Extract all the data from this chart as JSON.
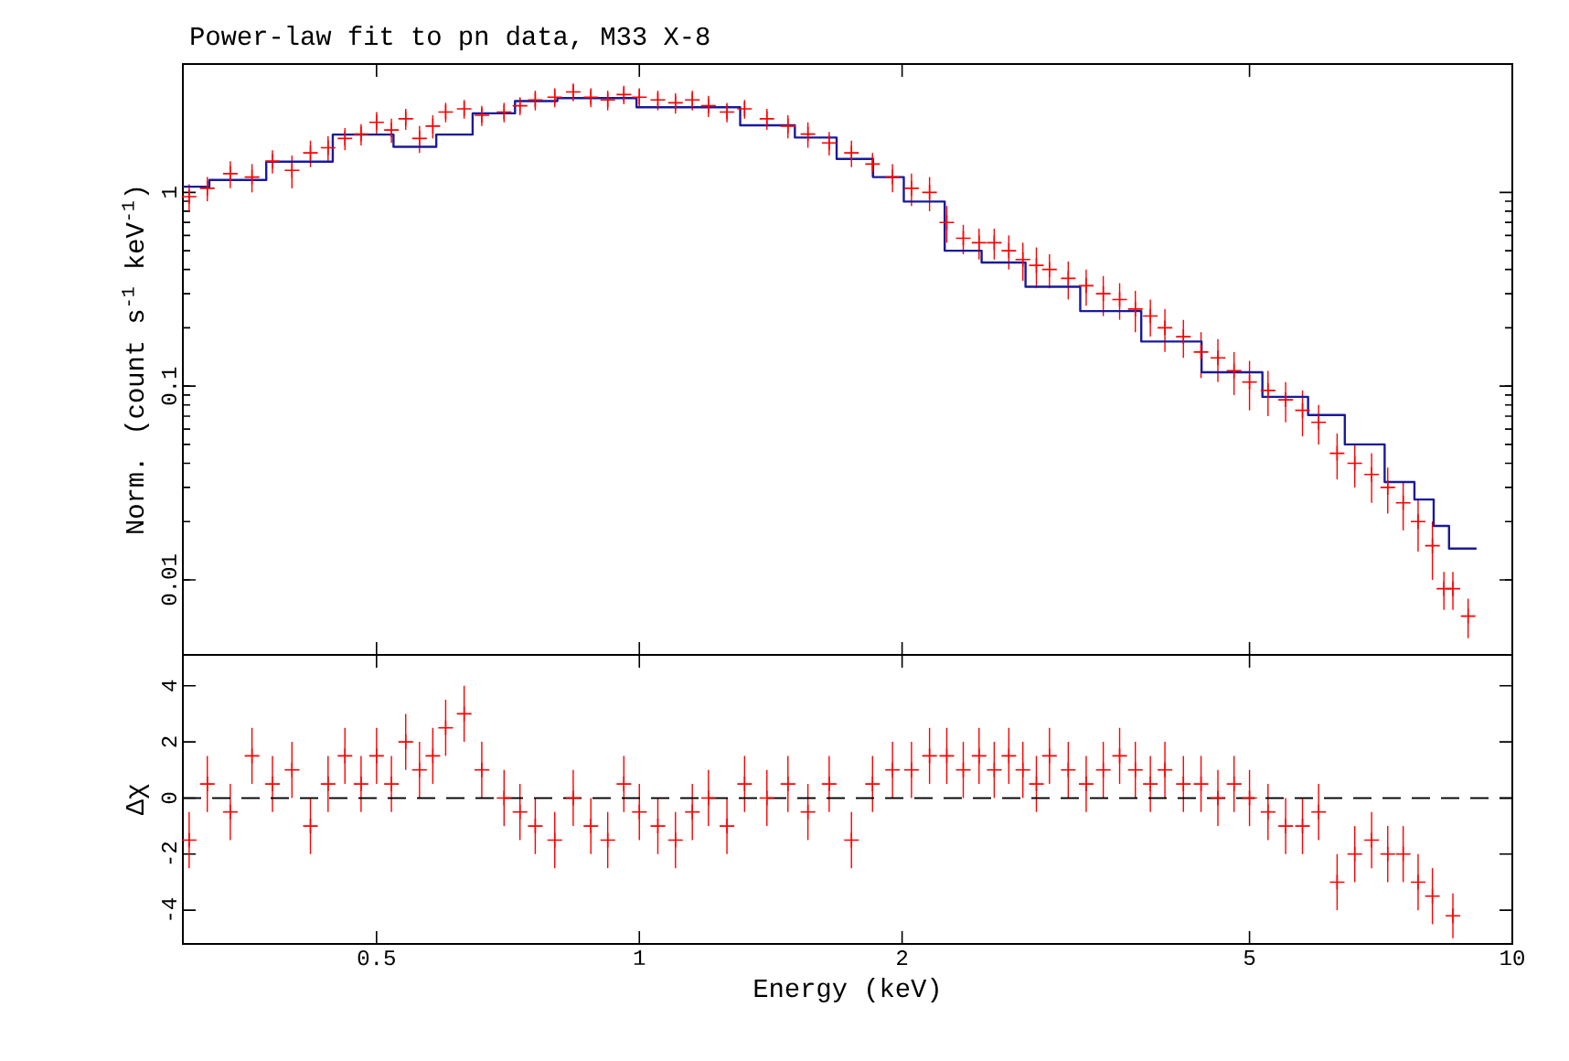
{
  "chart_data": [
    {
      "type": "scatter",
      "title": "Power-law fit to pn data, M33 X-8",
      "ylabel": "Norm. (count s$^{-1}$ keV$^{-1}$)",
      "log": "xy",
      "xlim": [
        0.3,
        10
      ],
      "ylim": [
        0.0041,
        4.6
      ],
      "xticks": [
        0.5,
        1,
        2,
        5,
        10
      ],
      "yticks": [
        0.01,
        0.1,
        1
      ],
      "tick_labels": "y",
      "series": [
        {
          "type": "scatter",
          "color": "#ff0000",
          "marker": "cross",
          "x": [
            0.305,
            0.32,
            0.34,
            0.36,
            0.38,
            0.4,
            0.42,
            0.44,
            0.46,
            0.48,
            0.5,
            0.52,
            0.54,
            0.56,
            0.58,
            0.6,
            0.63,
            0.66,
            0.7,
            0.73,
            0.76,
            0.8,
            0.84,
            0.88,
            0.92,
            0.96,
            1.0,
            1.05,
            1.1,
            1.15,
            1.2,
            1.26,
            1.32,
            1.4,
            1.48,
            1.56,
            1.65,
            1.75,
            1.85,
            1.95,
            2.05,
            2.15,
            2.25,
            2.35,
            2.45,
            2.55,
            2.65,
            2.75,
            2.85,
            2.95,
            3.1,
            3.25,
            3.4,
            3.55,
            3.7,
            3.85,
            4.0,
            4.2,
            4.4,
            4.6,
            4.8,
            5.0,
            5.25,
            5.5,
            5.75,
            6.0,
            6.3,
            6.6,
            6.9,
            7.2,
            7.5,
            7.8,
            8.1,
            8.35,
            8.55,
            8.9
          ],
          "values": [
            0.95,
            1.05,
            1.25,
            1.2,
            1.45,
            1.3,
            1.6,
            1.7,
            1.9,
            2.0,
            2.3,
            2.1,
            2.4,
            1.9,
            2.2,
            2.6,
            2.7,
            2.5,
            2.6,
            2.8,
            3.0,
            3.1,
            3.3,
            3.1,
            3.0,
            3.2,
            3.1,
            3.0,
            2.9,
            3.0,
            2.8,
            2.6,
            2.7,
            2.4,
            2.2,
            2.0,
            1.8,
            1.6,
            1.4,
            1.2,
            1.05,
            1.0,
            0.7,
            0.58,
            0.55,
            0.55,
            0.5,
            0.45,
            0.42,
            0.4,
            0.36,
            0.33,
            0.3,
            0.28,
            0.25,
            0.23,
            0.2,
            0.18,
            0.15,
            0.14,
            0.12,
            0.105,
            0.095,
            0.085,
            0.075,
            0.065,
            0.045,
            0.04,
            0.035,
            0.03,
            0.025,
            0.02,
            0.015,
            0.009,
            0.009,
            0.0065
          ],
          "errors": [
            0.15,
            0.15,
            0.2,
            0.2,
            0.2,
            0.25,
            0.25,
            0.25,
            0.25,
            0.25,
            0.3,
            0.3,
            0.3,
            0.3,
            0.3,
            0.3,
            0.3,
            0.3,
            0.3,
            0.3,
            0.35,
            0.35,
            0.35,
            0.35,
            0.35,
            0.35,
            0.35,
            0.35,
            0.35,
            0.35,
            0.35,
            0.3,
            0.3,
            0.3,
            0.3,
            0.3,
            0.25,
            0.25,
            0.2,
            0.2,
            0.2,
            0.2,
            0.15,
            0.1,
            0.1,
            0.1,
            0.1,
            0.1,
            0.1,
            0.08,
            0.08,
            0.07,
            0.07,
            0.06,
            0.06,
            0.05,
            0.05,
            0.04,
            0.04,
            0.035,
            0.03,
            0.03,
            0.025,
            0.02,
            0.02,
            0.015,
            0.012,
            0.01,
            0.01,
            0.008,
            0.007,
            0.006,
            0.005,
            0.002,
            0.002,
            0.0015
          ]
        },
        {
          "type": "step",
          "color": "#1a1a9a",
          "x": [
            0.3,
            0.345,
            0.405,
            0.49,
            0.558,
            0.614,
            0.676,
            0.768,
            0.845,
            1.166,
            1.46,
            1.556,
            1.82,
            1.886,
            2.14,
            2.34,
            2.6,
            2.95,
            3.47,
            4.07,
            4.77,
            5.61,
            6.07,
            6.81,
            7.49,
            7.97,
            8.29,
            8.64,
            9.1
          ],
          "values": [
            1.07,
            1.16,
            1.44,
            1.99,
            1.72,
            1.99,
            2.56,
            2.96,
            3.07,
            2.75,
            2.22,
            1.92,
            1.49,
            1.2,
            0.897,
            0.5,
            0.435,
            0.326,
            0.244,
            0.17,
            0.118,
            0.088,
            0.071,
            0.05,
            0.032,
            0.026,
            0.019,
            0.0145,
            0.0145
          ]
        }
      ]
    },
    {
      "type": "scatter",
      "xlabel": "Energy (keV)",
      "ylabel": "Δχ",
      "log": "x",
      "xlim": [
        0.3,
        10
      ],
      "ylim": [
        -5.2,
        5.1
      ],
      "xticks": [
        0.5,
        1,
        2,
        5,
        10
      ],
      "yticks": [
        -4,
        -2,
        0,
        2,
        4
      ],
      "ref_lines": [
        {
          "axis": "y",
          "value": 0,
          "color": "#000000",
          "line_style": "dashed"
        }
      ],
      "series": [
        {
          "type": "scatter",
          "color": "#ff0000",
          "marker": "cross",
          "x": [
            0.305,
            0.32,
            0.34,
            0.36,
            0.38,
            0.4,
            0.42,
            0.44,
            0.46,
            0.48,
            0.5,
            0.52,
            0.54,
            0.56,
            0.58,
            0.6,
            0.63,
            0.66,
            0.7,
            0.73,
            0.76,
            0.8,
            0.84,
            0.88,
            0.92,
            0.96,
            1.0,
            1.05,
            1.1,
            1.15,
            1.2,
            1.26,
            1.32,
            1.4,
            1.48,
            1.56,
            1.65,
            1.75,
            1.85,
            1.95,
            2.05,
            2.15,
            2.25,
            2.35,
            2.45,
            2.55,
            2.65,
            2.75,
            2.85,
            2.95,
            3.1,
            3.25,
            3.4,
            3.55,
            3.7,
            3.85,
            4.0,
            4.2,
            4.4,
            4.6,
            4.8,
            5.0,
            5.25,
            5.5,
            5.75,
            6.0,
            6.3,
            6.6,
            6.9,
            7.2,
            7.5,
            7.8,
            8.1,
            8.55
          ],
          "values": [
            -1.5,
            0.5,
            -0.5,
            1.5,
            0.5,
            1.0,
            -1,
            0.5,
            1.5,
            0.5,
            1.5,
            0.5,
            2.0,
            1.0,
            1.5,
            2.5,
            3.0,
            1.0,
            0,
            -0.5,
            -1,
            -1.5,
            0,
            -1,
            -1.5,
            0.5,
            -0.5,
            -1,
            -1.5,
            -0.5,
            0,
            -1,
            0.5,
            0,
            0.5,
            -0.5,
            0.5,
            -1.5,
            0.5,
            1,
            1,
            1.5,
            1.5,
            1,
            1.5,
            1,
            1.5,
            1,
            0.5,
            1.5,
            1,
            0.5,
            1,
            1.5,
            1,
            0.5,
            1,
            0.5,
            0.5,
            0,
            0.5,
            0,
            -0.5,
            -1,
            -1,
            -0.5,
            -3,
            -2,
            -1.5,
            -2,
            -2,
            -3,
            -3.5,
            -4.2
          ],
          "errors": [
            1,
            1,
            1,
            1,
            1,
            1,
            1,
            1,
            1,
            1,
            1,
            1,
            1,
            1,
            1,
            1,
            1,
            1,
            1,
            1,
            1,
            1,
            1,
            1,
            1,
            1,
            1,
            1,
            1,
            1,
            1,
            1,
            1,
            1,
            1,
            1,
            1,
            1,
            1,
            1,
            1,
            1,
            1,
            1,
            1,
            1,
            1,
            1,
            1,
            1,
            1,
            1,
            1,
            1,
            1,
            1,
            1,
            1,
            1,
            1,
            1,
            1,
            1,
            1,
            1,
            1,
            1,
            1,
            1,
            1,
            1,
            1,
            1,
            0.8
          ]
        }
      ]
    }
  ]
}
